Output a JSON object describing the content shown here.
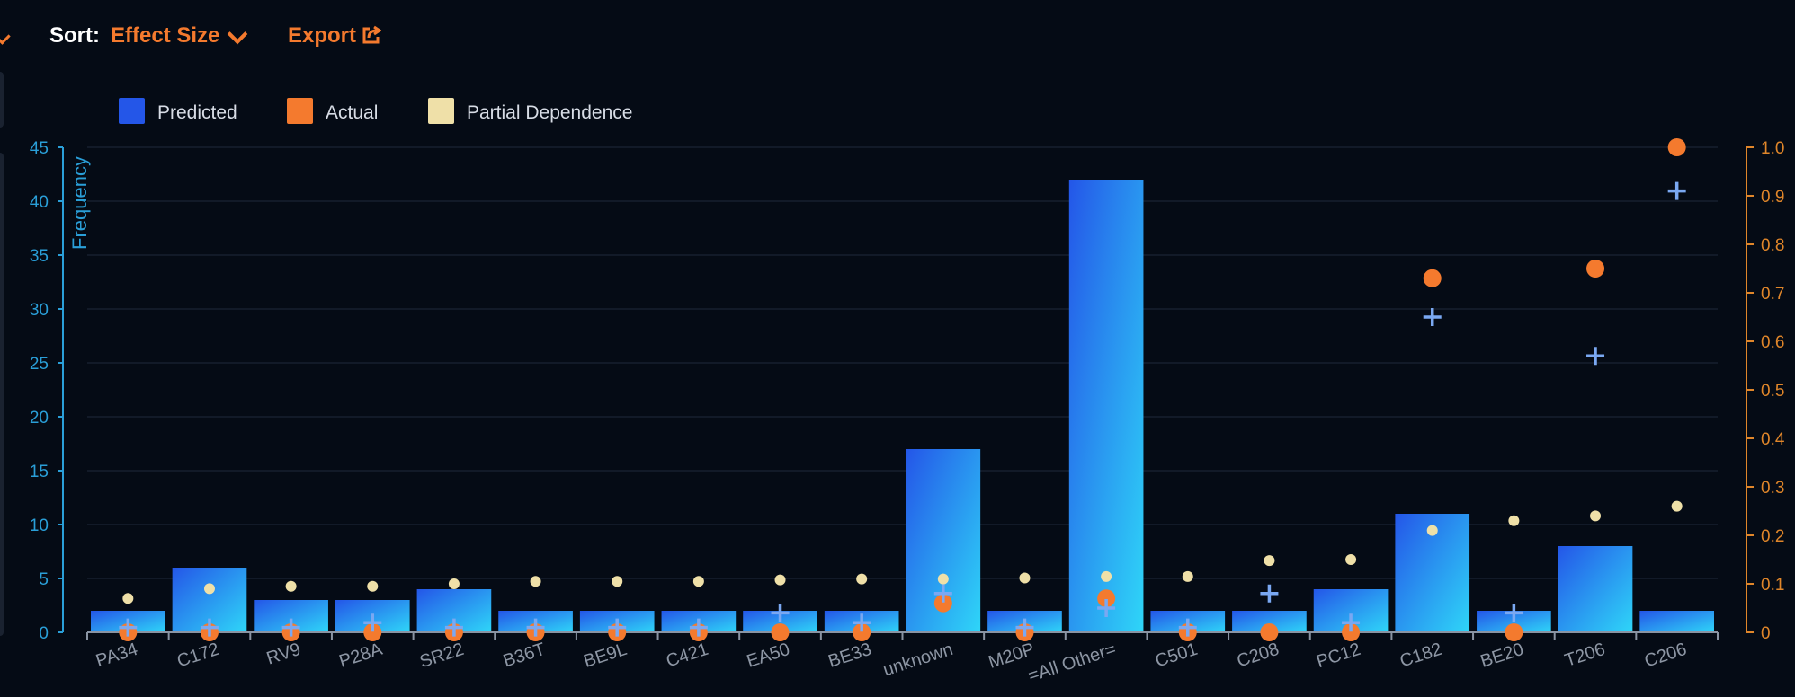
{
  "toolbar": {
    "sort_label": "Sort:",
    "sort_value": "Effect Size",
    "export_label": "Export",
    "icons": [
      "chevron-down-icon",
      "export-icon"
    ]
  },
  "colors": {
    "background": "#050b15",
    "accent": "#f47a2e",
    "left_axis": "#2a9fd8",
    "right_axis": "#e0862a",
    "bar_top": "#2456e8",
    "bar_bottom": "#2fd6f8",
    "plus": "#7aa8f2",
    "partial_dependence": "#efe0a8",
    "grid": "#1f2a3a"
  },
  "chart_data": {
    "type": "bar",
    "title": "",
    "xlabel": "",
    "ylabel": "Frequency",
    "ylim": [
      0,
      45
    ],
    "y_ticks": [
      "0",
      "5",
      "10",
      "15",
      "20",
      "25",
      "30",
      "35",
      "40",
      "45"
    ],
    "y2lim": [
      0,
      1
    ],
    "y2_ticks": [
      "0",
      "0.1",
      "0.2",
      "0.3",
      "0.4",
      "0.5",
      "0.6",
      "0.7",
      "0.8",
      "0.9",
      "1.0"
    ],
    "legend": [
      "Predicted",
      "Actual",
      "Partial Dependence"
    ],
    "legend_position": "top-left",
    "grid": true,
    "categories": [
      "PA34",
      "C172",
      "RV9",
      "P28A",
      "SR22",
      "B36T",
      "BE9L",
      "C421",
      "EA50",
      "BE33",
      "unknown",
      "M20P",
      "=All Other=",
      "C501",
      "C208",
      "PC12",
      "C182",
      "BE20",
      "T206",
      "C206"
    ],
    "series": [
      {
        "name": "",
        "axis": "left",
        "mark": "bar",
        "values": [
          2,
          6,
          3,
          3,
          4,
          2,
          2,
          2,
          2,
          2,
          17,
          2,
          42,
          2,
          2,
          4,
          11,
          2,
          8,
          2
        ]
      },
      {
        "name": "Predicted",
        "axis": "right",
        "mark": "plus",
        "values": [
          0.01,
          0.01,
          0.01,
          0.02,
          0.01,
          0.01,
          0.01,
          0.01,
          0.04,
          0.02,
          0.08,
          0.01,
          0.05,
          0.01,
          0.08,
          0.02,
          0.65,
          0.04,
          0.57,
          0.91
        ]
      },
      {
        "name": "Actual",
        "axis": "right",
        "mark": "circle",
        "values": [
          0,
          0,
          0,
          0,
          0,
          0,
          0,
          0,
          0,
          0,
          0.06,
          0,
          0.07,
          0,
          0,
          0,
          0.73,
          0,
          0.75,
          1.0
        ]
      },
      {
        "name": "Partial Dependence",
        "axis": "right",
        "mark": "dot",
        "values": [
          0.07,
          0.09,
          0.095,
          0.095,
          0.1,
          0.105,
          0.105,
          0.105,
          0.108,
          0.11,
          0.11,
          0.112,
          0.115,
          0.115,
          0.148,
          0.15,
          0.21,
          0.23,
          0.24,
          0.26
        ]
      }
    ]
  }
}
